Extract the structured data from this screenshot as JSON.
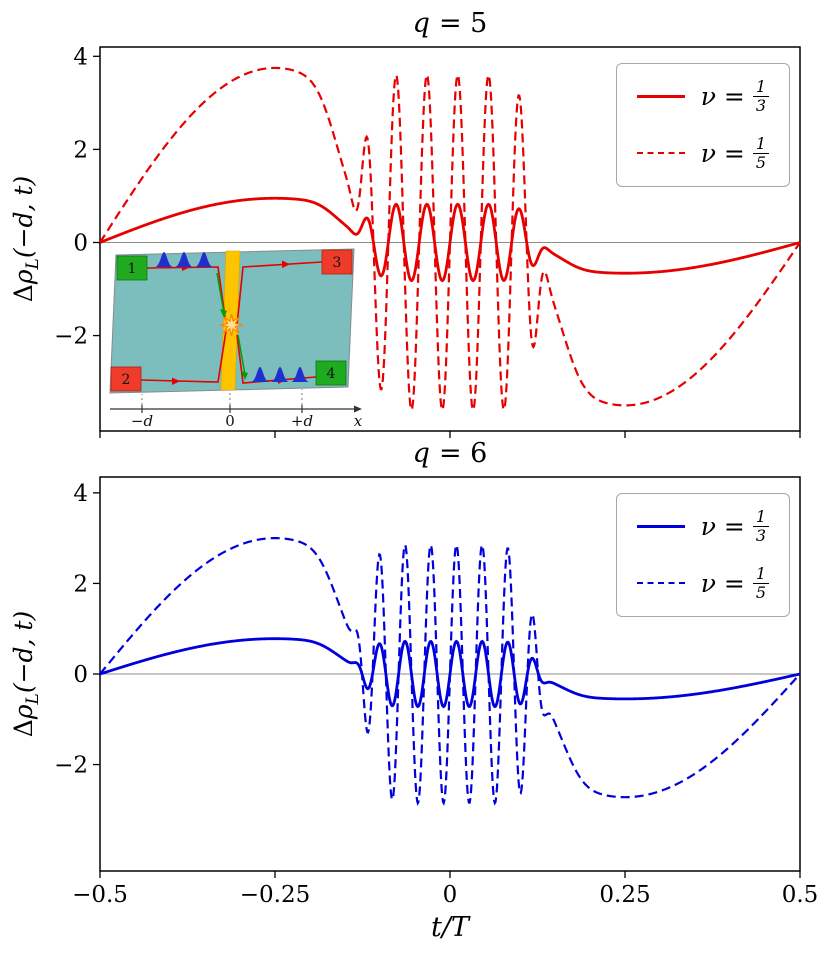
{
  "figure": {
    "xlabel": "t/T"
  },
  "chart_data": [
    {
      "type": "line",
      "title_var": "q",
      "title_eq": "= 5",
      "ylabel_Delta": "Δ",
      "ylabel_rho": "ρ",
      "ylabel_sub": "L",
      "ylabel_args": "(−d, t)",
      "color": "#e60000",
      "xlim": [
        -0.5,
        0.5
      ],
      "ylim": [
        -4.05,
        4.2
      ],
      "show_x_labels": false,
      "grid": false,
      "legend_position": "upper right",
      "xticks": [
        {
          "v": -0.5,
          "label": "−0.5"
        },
        {
          "v": -0.25,
          "label": "−0.25"
        },
        {
          "v": 0,
          "label": "0"
        },
        {
          "v": 0.25,
          "label": "0.25"
        },
        {
          "v": 0.5,
          "label": "0.5"
        }
      ],
      "yticks": [
        {
          "v": -2,
          "label": "−2"
        },
        {
          "v": 0,
          "label": "0"
        },
        {
          "v": 2,
          "label": "2"
        },
        {
          "v": 4,
          "label": "4"
        }
      ],
      "legend": [
        {
          "sym": "ν =",
          "num": "1",
          "den": "3",
          "style": "solid"
        },
        {
          "sym": "ν =",
          "num": "1",
          "den": "5",
          "style": "dashed"
        }
      ],
      "series": [
        {
          "id": "q5-nu-1-3",
          "style": "solid",
          "model": {
            "amp_pos": 0.95,
            "amp_neg": 0.66,
            "amp_osc": 0.82,
            "osc_period": 0.044,
            "osc_env_width": 0.125,
            "osc_env_power": 10,
            "slow_env_width": 0.16,
            "slow_env_power": 6
          }
        },
        {
          "id": "q5-nu-1-5",
          "style": "dashed",
          "model": {
            "amp_pos": 3.75,
            "amp_neg": 3.5,
            "amp_osc": 3.6,
            "osc_period": 0.044,
            "osc_env_width": 0.125,
            "osc_env_power": 10,
            "slow_env_width": 0.16,
            "slow_env_power": 6
          }
        }
      ]
    },
    {
      "type": "line",
      "title_var": "q",
      "title_eq": "= 6",
      "ylabel_Delta": "Δ",
      "ylabel_rho": "ρ",
      "ylabel_sub": "L",
      "ylabel_args": "(−d, t)",
      "color": "#0000dd",
      "xlim": [
        -0.5,
        0.5
      ],
      "ylim": [
        -4.35,
        4.35
      ],
      "show_x_labels": true,
      "grid": false,
      "legend_position": "upper right",
      "xticks": [
        {
          "v": -0.5,
          "label": "−0.5"
        },
        {
          "v": -0.25,
          "label": "−0.25"
        },
        {
          "v": 0,
          "label": "0"
        },
        {
          "v": 0.25,
          "label": "0.25"
        },
        {
          "v": 0.5,
          "label": "0.5"
        }
      ],
      "yticks": [
        {
          "v": -2,
          "label": "−2"
        },
        {
          "v": 0,
          "label": "0"
        },
        {
          "v": 2,
          "label": "2"
        },
        {
          "v": 4,
          "label": "4"
        }
      ],
      "legend": [
        {
          "sym": "ν =",
          "num": "1",
          "den": "3",
          "style": "solid"
        },
        {
          "sym": "ν =",
          "num": "1",
          "den": "5",
          "style": "dashed"
        }
      ],
      "series": [
        {
          "id": "q6-nu-1-3",
          "style": "solid",
          "model": {
            "amp_pos": 0.78,
            "amp_neg": 0.55,
            "amp_osc": 0.72,
            "osc_period": 0.0367,
            "osc_env_width": 0.125,
            "osc_env_power": 10,
            "slow_env_width": 0.16,
            "slow_env_power": 6
          }
        },
        {
          "id": "q6-nu-1-5",
          "style": "dashed",
          "model": {
            "amp_pos": 3.0,
            "amp_neg": 2.72,
            "amp_osc": 2.85,
            "osc_period": 0.0367,
            "osc_env_width": 0.125,
            "osc_env_power": 10,
            "slow_env_width": 0.16,
            "slow_env_power": 6
          }
        }
      ]
    }
  ],
  "inset": {
    "contacts": [
      "1",
      "2",
      "3",
      "4"
    ],
    "tick_labels": [
      "−d",
      "0",
      "+d"
    ],
    "axis_label": "x",
    "colors": {
      "bar": "#7cbdbd",
      "gate": "#ffc400",
      "green_contact": "#1faa1f",
      "red_contact": "#ee3b2a",
      "edge": "#e60000",
      "inner_edge": "#00a000",
      "packet": "#2030cf"
    }
  }
}
